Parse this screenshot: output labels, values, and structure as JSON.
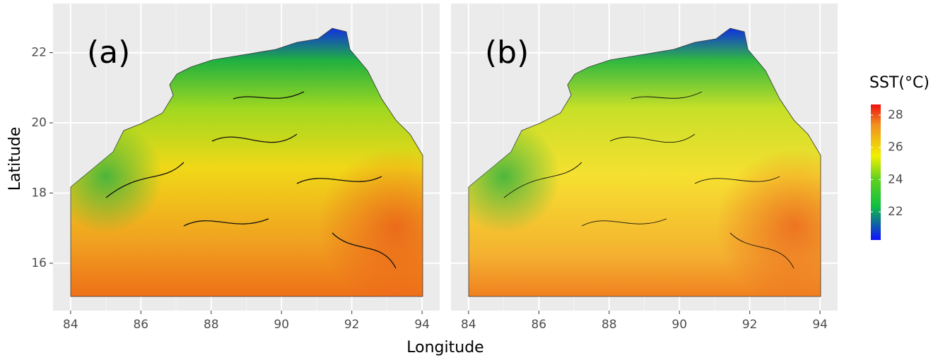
{
  "chart_data": [
    {
      "type": "map",
      "label": "(a)",
      "xlim": [
        83.5,
        94.5
      ],
      "ylim": [
        14.65,
        23.4
      ],
      "xticks": [
        84,
        86,
        88,
        90,
        92,
        94
      ],
      "yticks": [
        16,
        18,
        20,
        22
      ],
      "grid": true
    },
    {
      "type": "map",
      "label": "(b)",
      "xlim": [
        83.5,
        94.5
      ],
      "ylim": [
        14.65,
        23.4
      ],
      "xticks": [
        84,
        86,
        88,
        90,
        92,
        94
      ],
      "yticks": [
        16,
        18,
        20,
        22
      ],
      "grid": true
    }
  ],
  "shared": {
    "x_label": "Longitude",
    "y_label": "Latitude",
    "legend": {
      "title": "SST(°C)",
      "lim": [
        20.25,
        28.66
      ],
      "ticks": [
        22,
        24,
        26,
        28
      ]
    }
  }
}
